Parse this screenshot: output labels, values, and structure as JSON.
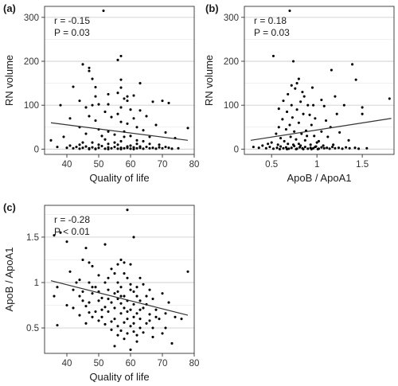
{
  "chart_data": [
    {
      "type": "scatter",
      "panel_label": "(a)",
      "xlabel": "Quality of life",
      "ylabel": "RN volume",
      "xlim": [
        33,
        80
      ],
      "ylim": [
        -12,
        325
      ],
      "xticks": [
        40,
        50,
        60,
        70,
        80
      ],
      "yticks": [
        0,
        100,
        200,
        300
      ],
      "grid": true,
      "annotations": {
        "r": "r = -0.15",
        "p": "P = 0.03"
      },
      "trendline": [
        [
          35,
          60
        ],
        [
          78,
          20
        ]
      ],
      "points": [
        [
          51.5,
          315
        ],
        [
          45,
          193
        ],
        [
          57,
          212
        ],
        [
          56,
          203
        ],
        [
          47,
          185
        ],
        [
          47,
          178
        ],
        [
          48,
          160
        ],
        [
          57,
          158
        ],
        [
          57,
          140
        ],
        [
          63,
          150
        ],
        [
          42,
          142
        ],
        [
          49,
          141
        ],
        [
          56,
          128
        ],
        [
          53,
          125
        ],
        [
          49,
          120
        ],
        [
          59,
          120
        ],
        [
          59,
          110
        ],
        [
          61,
          122
        ],
        [
          58,
          115
        ],
        [
          70,
          110
        ],
        [
          44,
          110
        ],
        [
          53,
          102
        ],
        [
          38,
          100
        ],
        [
          48,
          100
        ],
        [
          50,
          102
        ],
        [
          57,
          95
        ],
        [
          67,
          108
        ],
        [
          72,
          105
        ],
        [
          46,
          95
        ],
        [
          52,
          85
        ],
        [
          60,
          90
        ],
        [
          63,
          88
        ],
        [
          56,
          80
        ],
        [
          47,
          75
        ],
        [
          41,
          70
        ],
        [
          54,
          73
        ],
        [
          61,
          70
        ],
        [
          65,
          75
        ],
        [
          49,
          65
        ],
        [
          57,
          62
        ],
        [
          59,
          58
        ],
        [
          68,
          55
        ],
        [
          78,
          48
        ],
        [
          62,
          50
        ],
        [
          44,
          50
        ],
        [
          50,
          45
        ],
        [
          53,
          40
        ],
        [
          58,
          40
        ],
        [
          64,
          43
        ],
        [
          71,
          38
        ],
        [
          46,
          35
        ],
        [
          55,
          33
        ],
        [
          60,
          30
        ],
        [
          66,
          28
        ],
        [
          74,
          25
        ],
        [
          39,
          28
        ],
        [
          52,
          22
        ],
        [
          57,
          18
        ],
        [
          62,
          20
        ],
        [
          48,
          15
        ],
        [
          53,
          12
        ],
        [
          44,
          10
        ],
        [
          56,
          10
        ],
        [
          62,
          12
        ],
        [
          69,
          10
        ],
        [
          35,
          20
        ],
        [
          37,
          5
        ],
        [
          40,
          3
        ],
        [
          41,
          8
        ],
        [
          42,
          2
        ],
        [
          43,
          5
        ],
        [
          44,
          1
        ],
        [
          45,
          3
        ],
        [
          46,
          6
        ],
        [
          47,
          2
        ],
        [
          48,
          4
        ],
        [
          49,
          1
        ],
        [
          50,
          3
        ],
        [
          51,
          7
        ],
        [
          52,
          1
        ],
        [
          53,
          4
        ],
        [
          54,
          2
        ],
        [
          55,
          5
        ],
        [
          56,
          1
        ],
        [
          57,
          3
        ],
        [
          58,
          2
        ],
        [
          59,
          6
        ],
        [
          60,
          1
        ],
        [
          61,
          4
        ],
        [
          62,
          2
        ],
        [
          63,
          3
        ],
        [
          64,
          1
        ],
        [
          65,
          5
        ],
        [
          66,
          2
        ],
        [
          67,
          3
        ],
        [
          68,
          1
        ],
        [
          69,
          4
        ],
        [
          70,
          2
        ],
        [
          72,
          3
        ],
        [
          73,
          1
        ],
        [
          75,
          2
        ],
        [
          58,
          28
        ],
        [
          64,
          18
        ],
        [
          51,
          30
        ],
        [
          55,
          15
        ],
        [
          60,
          8
        ],
        [
          63,
          6
        ],
        [
          66,
          12
        ],
        [
          71,
          5
        ],
        [
          50,
          10
        ],
        [
          45,
          15
        ],
        [
          59,
          3
        ],
        [
          61,
          0
        ],
        [
          57,
          0
        ],
        [
          53,
          0
        ],
        [
          49,
          0
        ],
        [
          47,
          0
        ]
      ]
    },
    {
      "type": "scatter",
      "panel_label": "(b)",
      "xlabel": "ApoB / ApoA1",
      "ylabel": "RN volume",
      "xlim": [
        0.2,
        1.85
      ],
      "ylim": [
        -12,
        325
      ],
      "xticks": [
        0.5,
        1.0,
        1.5
      ],
      "yticks": [
        0,
        100,
        200,
        300
      ],
      "grid": true,
      "annotations": {
        "r": "r = 0.18",
        "p": "P = 0.03"
      },
      "trendline": [
        [
          0.27,
          20
        ],
        [
          1.82,
          70
        ]
      ],
      "points": [
        [
          0.7,
          315
        ],
        [
          0.52,
          212
        ],
        [
          0.74,
          200
        ],
        [
          1.39,
          193
        ],
        [
          1.16,
          180
        ],
        [
          1.43,
          158
        ],
        [
          0.8,
          160
        ],
        [
          0.78,
          150
        ],
        [
          0.72,
          145
        ],
        [
          0.95,
          140
        ],
        [
          0.76,
          138
        ],
        [
          0.84,
          130
        ],
        [
          0.68,
          125
        ],
        [
          0.86,
          120
        ],
        [
          1.2,
          120
        ],
        [
          0.63,
          110
        ],
        [
          0.82,
          108
        ],
        [
          1.05,
          112
        ],
        [
          1.8,
          115
        ],
        [
          0.72,
          100
        ],
        [
          0.9,
          100
        ],
        [
          0.96,
          100
        ],
        [
          1.08,
          98
        ],
        [
          1.3,
          100
        ],
        [
          0.58,
          92
        ],
        [
          0.78,
          90
        ],
        [
          1.5,
          95
        ],
        [
          0.67,
          85
        ],
        [
          0.85,
          80
        ],
        [
          0.92,
          78
        ],
        [
          1.22,
          80
        ],
        [
          1.5,
          80
        ],
        [
          0.73,
          72
        ],
        [
          0.62,
          68
        ],
        [
          0.98,
          70
        ],
        [
          1.1,
          65
        ],
        [
          0.8,
          60
        ],
        [
          0.7,
          55
        ],
        [
          0.94,
          55
        ],
        [
          1.15,
          50
        ],
        [
          0.58,
          50
        ],
        [
          0.66,
          45
        ],
        [
          0.75,
          40
        ],
        [
          0.88,
          42
        ],
        [
          1.05,
          40
        ],
        [
          1.25,
          38
        ],
        [
          0.55,
          35
        ],
        [
          0.83,
          35
        ],
        [
          0.97,
          30
        ],
        [
          1.12,
          28
        ],
        [
          0.6,
          25
        ],
        [
          0.77,
          22
        ],
        [
          0.87,
          20
        ],
        [
          1.02,
          18
        ],
        [
          1.35,
          20
        ],
        [
          0.5,
          15
        ],
        [
          0.68,
          12
        ],
        [
          0.8,
          12
        ],
        [
          0.93,
          10
        ],
        [
          1.18,
          10
        ],
        [
          0.3,
          5
        ],
        [
          0.36,
          3
        ],
        [
          0.4,
          8
        ],
        [
          0.44,
          2
        ],
        [
          0.48,
          5
        ],
        [
          0.52,
          1
        ],
        [
          0.56,
          3
        ],
        [
          0.6,
          6
        ],
        [
          0.63,
          2
        ],
        [
          0.66,
          4
        ],
        [
          0.69,
          1
        ],
        [
          0.72,
          3
        ],
        [
          0.75,
          7
        ],
        [
          0.78,
          1
        ],
        [
          0.81,
          4
        ],
        [
          0.84,
          2
        ],
        [
          0.87,
          5
        ],
        [
          0.9,
          1
        ],
        [
          0.93,
          3
        ],
        [
          0.96,
          2
        ],
        [
          0.99,
          6
        ],
        [
          1.02,
          1
        ],
        [
          1.05,
          4
        ],
        [
          1.08,
          2
        ],
        [
          1.11,
          3
        ],
        [
          1.14,
          1
        ],
        [
          1.17,
          5
        ],
        [
          1.2,
          2
        ],
        [
          1.24,
          3
        ],
        [
          1.28,
          1
        ],
        [
          1.32,
          4
        ],
        [
          1.36,
          2
        ],
        [
          1.42,
          3
        ],
        [
          1.46,
          1
        ],
        [
          1.55,
          2
        ],
        [
          0.71,
          28
        ],
        [
          0.89,
          30
        ],
        [
          1.0,
          15
        ],
        [
          0.64,
          18
        ],
        [
          0.74,
          10
        ],
        [
          0.82,
          8
        ],
        [
          0.98,
          5
        ],
        [
          1.07,
          8
        ],
        [
          0.57,
          10
        ],
        [
          0.46,
          12
        ],
        [
          0.85,
          0
        ],
        [
          0.77,
          0
        ],
        [
          0.67,
          0
        ],
        [
          0.59,
          0
        ],
        [
          0.94,
          0
        ],
        [
          1.01,
          0
        ]
      ]
    },
    {
      "type": "scatter",
      "panel_label": "(c)",
      "xlabel": "Quality of life",
      "ylabel": "ApoB / ApoA1",
      "xlim": [
        33,
        80
      ],
      "ylim": [
        0.22,
        1.85
      ],
      "xticks": [
        40,
        50,
        60,
        70,
        80
      ],
      "yticks": [
        0.5,
        1.0,
        1.5
      ],
      "grid": true,
      "annotations": {
        "r": "r = -0.28",
        "p": "P < 0.01"
      },
      "trendline": [
        [
          35,
          1.02
        ],
        [
          78,
          0.64
        ]
      ],
      "points": [
        [
          59,
          1.8
        ],
        [
          38,
          1.55
        ],
        [
          36,
          1.52
        ],
        [
          40,
          1.45
        ],
        [
          61,
          1.5
        ],
        [
          52,
          1.42
        ],
        [
          46,
          1.38
        ],
        [
          45,
          1.25
        ],
        [
          47,
          1.22
        ],
        [
          57,
          1.25
        ],
        [
          58,
          1.22
        ],
        [
          56,
          1.2
        ],
        [
          60,
          1.2
        ],
        [
          48,
          1.18
        ],
        [
          54,
          1.15
        ],
        [
          41,
          1.12
        ],
        [
          55,
          1.1
        ],
        [
          78,
          1.12
        ],
        [
          50,
          1.08
        ],
        [
          59,
          1.05
        ],
        [
          63,
          1.05
        ],
        [
          44,
          1.03
        ],
        [
          47,
          1.0
        ],
        [
          52,
          1.0
        ],
        [
          56,
          1.0
        ],
        [
          60,
          0.98
        ],
        [
          64,
          0.98
        ],
        [
          37,
          0.95
        ],
        [
          49,
          0.95
        ],
        [
          57,
          0.95
        ],
        [
          42,
          0.92
        ],
        [
          45,
          0.9
        ],
        [
          53,
          0.92
        ],
        [
          61,
          0.9
        ],
        [
          66,
          0.92
        ],
        [
          48,
          0.88
        ],
        [
          55,
          0.88
        ],
        [
          58,
          0.85
        ],
        [
          62,
          0.85
        ],
        [
          70,
          0.88
        ],
        [
          36,
          0.85
        ],
        [
          44,
          0.85
        ],
        [
          51,
          0.83
        ],
        [
          56,
          0.82
        ],
        [
          59,
          0.8
        ],
        [
          63,
          0.8
        ],
        [
          67,
          0.82
        ],
        [
          47,
          0.78
        ],
        [
          50,
          0.8
        ],
        [
          54,
          0.78
        ],
        [
          57,
          0.77
        ],
        [
          61,
          0.76
        ],
        [
          65,
          0.76
        ],
        [
          72,
          0.78
        ],
        [
          40,
          0.75
        ],
        [
          46,
          0.74
        ],
        [
          52,
          0.73
        ],
        [
          55,
          0.72
        ],
        [
          58,
          0.72
        ],
        [
          60,
          0.7
        ],
        [
          64,
          0.72
        ],
        [
          68,
          0.7
        ],
        [
          49,
          0.68
        ],
        [
          53,
          0.68
        ],
        [
          57,
          0.66
        ],
        [
          62,
          0.66
        ],
        [
          66,
          0.65
        ],
        [
          71,
          0.66
        ],
        [
          44,
          0.64
        ],
        [
          48,
          0.62
        ],
        [
          51,
          0.62
        ],
        [
          55,
          0.6
        ],
        [
          59,
          0.6
        ],
        [
          63,
          0.6
        ],
        [
          69,
          0.6
        ],
        [
          74,
          0.62
        ],
        [
          50,
          0.58
        ],
        [
          54,
          0.57
        ],
        [
          58,
          0.56
        ],
        [
          61,
          0.55
        ],
        [
          65,
          0.55
        ],
        [
          46,
          0.55
        ],
        [
          52,
          0.54
        ],
        [
          56,
          0.52
        ],
        [
          60,
          0.52
        ],
        [
          63,
          0.5
        ],
        [
          67,
          0.5
        ],
        [
          71,
          0.5
        ],
        [
          54,
          0.48
        ],
        [
          57,
          0.47
        ],
        [
          61,
          0.46
        ],
        [
          64,
          0.45
        ],
        [
          59,
          0.44
        ],
        [
          70,
          0.44
        ],
        [
          56,
          0.42
        ],
        [
          62,
          0.42
        ],
        [
          67,
          0.4
        ],
        [
          58,
          0.38
        ],
        [
          62,
          0.35
        ],
        [
          73,
          0.33
        ],
        [
          55,
          0.3
        ],
        [
          60,
          0.26
        ],
        [
          37,
          0.53
        ],
        [
          42,
          0.72
        ],
        [
          45,
          0.8
        ],
        [
          48,
          0.95
        ],
        [
          50,
          0.9
        ],
        [
          53,
          1.05
        ],
        [
          56,
          0.9
        ],
        [
          58,
          1.1
        ],
        [
          60,
          0.92
        ],
        [
          62,
          0.95
        ],
        [
          65,
          0.85
        ],
        [
          43,
          1.0
        ],
        [
          47,
          0.67
        ],
        [
          51,
          0.7
        ],
        [
          53,
          0.82
        ],
        [
          57,
          0.85
        ],
        [
          59,
          0.68
        ],
        [
          61,
          0.62
        ],
        [
          63,
          0.7
        ],
        [
          66,
          0.58
        ],
        [
          68,
          0.62
        ],
        [
          76,
          0.6
        ]
      ]
    }
  ]
}
